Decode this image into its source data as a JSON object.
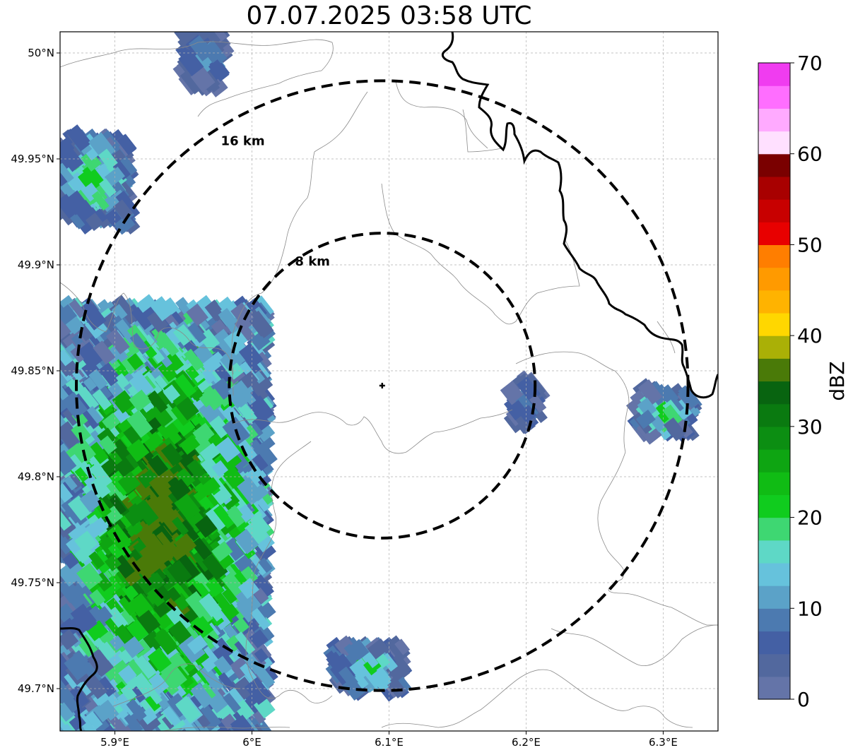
{
  "title": "07.07.2025 03:58 UTC",
  "map": {
    "lon_range": [
      5.86,
      6.34
    ],
    "lat_range": [
      49.68,
      50.01
    ],
    "lon_ticks": [
      {
        "value": 5.9,
        "label": "5.9°E"
      },
      {
        "value": 6.0,
        "label": "6°E"
      },
      {
        "value": 6.1,
        "label": "6.1°E"
      },
      {
        "value": 6.2,
        "label": "6.2°E"
      },
      {
        "value": 6.3,
        "label": "6.3°E"
      }
    ],
    "lat_ticks": [
      {
        "value": 50.0,
        "label": "50°N"
      },
      {
        "value": 49.95,
        "label": "49.95°N"
      },
      {
        "value": 49.9,
        "label": "49.9°N"
      },
      {
        "value": 49.85,
        "label": "49.85°N"
      },
      {
        "value": 49.8,
        "label": "49.8°N"
      },
      {
        "value": 49.75,
        "label": "49.75°N"
      },
      {
        "value": 49.7,
        "label": "49.7°N"
      }
    ],
    "center": {
      "lon": 6.095,
      "lat": 49.843
    },
    "rings": [
      {
        "radius_km": 8,
        "label": "8 km"
      },
      {
        "radius_km": 16,
        "label": "16 km"
      }
    ],
    "gridlines": true
  },
  "colorbar": {
    "title": "dBZ",
    "min": 0,
    "max": 70,
    "step": 2.5,
    "tick_labels": [
      "0",
      "10",
      "20",
      "30",
      "40",
      "50",
      "60",
      "70"
    ],
    "colors": [
      "#6474a8",
      "#52689e",
      "#4460a4",
      "#4c7ab0",
      "#5ba2c8",
      "#66c2dc",
      "#5ed8c6",
      "#3ed772",
      "#10cc1e",
      "#10bc14",
      "#0ea512",
      "#0c8e12",
      "#0a7a10",
      "#086410",
      "#4a7a08",
      "#aab006",
      "#ffd700",
      "#ffb300",
      "#ff9a00",
      "#ff7e00",
      "#e80000",
      "#c80000",
      "#a80000",
      "#7a0000",
      "#ffe0ff",
      "#ffaaff",
      "#ff6eff",
      "#f03cf0"
    ]
  },
  "chart_data": {
    "type": "heatmap",
    "title": "07.07.2025 03:58 UTC",
    "xlabel": "",
    "ylabel": "",
    "xlim": [
      5.86,
      6.34
    ],
    "ylim": [
      49.68,
      50.01
    ],
    "colorbar_label": "dBZ",
    "colorbar_range": [
      0,
      70
    ],
    "echo_regions": [
      {
        "name": "southwest cell",
        "lon_range": [
          5.86,
          6.01
        ],
        "lat_range": [
          49.68,
          49.88
        ],
        "dbz_range": [
          0,
          37
        ]
      },
      {
        "name": "northwest fragment",
        "lon_range": [
          5.86,
          5.91
        ],
        "lat_range": [
          49.92,
          49.96
        ],
        "dbz_range": [
          0,
          22
        ]
      },
      {
        "name": "north fragment",
        "lon_range": [
          5.95,
          5.98
        ],
        "lat_range": [
          49.985,
          50.01
        ],
        "dbz_range": [
          0,
          12
        ]
      },
      {
        "name": "south fragment",
        "lon_range": [
          6.06,
          6.11
        ],
        "lat_range": [
          49.7,
          49.72
        ],
        "dbz_range": [
          0,
          20
        ]
      },
      {
        "name": "east fragment",
        "lon_range": [
          6.19,
          6.21
        ],
        "lat_range": [
          49.825,
          49.845
        ],
        "dbz_range": [
          0,
          10
        ]
      },
      {
        "name": "far east band",
        "lon_range": [
          6.28,
          6.32
        ],
        "lat_range": [
          49.82,
          49.84
        ],
        "dbz_range": [
          0,
          22
        ]
      }
    ]
  }
}
